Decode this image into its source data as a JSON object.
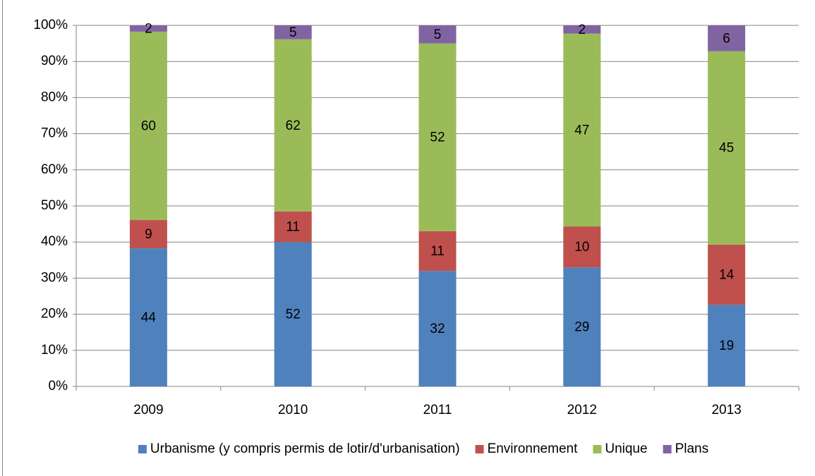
{
  "chart_data": {
    "type": "bar",
    "stacking": "percent",
    "categories": [
      "2009",
      "2010",
      "2011",
      "2012",
      "2013"
    ],
    "series": [
      {
        "name": "Urbanisme (y compris permis de lotir/d'urbanisation)",
        "color": "#4f81bd",
        "values": [
          44,
          52,
          32,
          29,
          19
        ]
      },
      {
        "name": "Environnement",
        "color": "#c0504d",
        "values": [
          9,
          11,
          11,
          10,
          14
        ]
      },
      {
        "name": "Unique",
        "color": "#9bbb59",
        "values": [
          60,
          62,
          52,
          47,
          45
        ]
      },
      {
        "name": "Plans",
        "color": "#8064a2",
        "values": [
          2,
          5,
          5,
          2,
          6
        ]
      }
    ],
    "ylim": [
      0,
      100
    ],
    "yticks": [
      {
        "value": 0,
        "label": "0%"
      },
      {
        "value": 10,
        "label": "10%"
      },
      {
        "value": 20,
        "label": "20%"
      },
      {
        "value": 30,
        "label": "30%"
      },
      {
        "value": 40,
        "label": "40%"
      },
      {
        "value": 50,
        "label": "50%"
      },
      {
        "value": 60,
        "label": "60%"
      },
      {
        "value": 70,
        "label": "70%"
      },
      {
        "value": 80,
        "label": "80%"
      },
      {
        "value": 90,
        "label": "90%"
      },
      {
        "value": 100,
        "label": "100%"
      }
    ],
    "grid": true,
    "legend": "bottom"
  }
}
